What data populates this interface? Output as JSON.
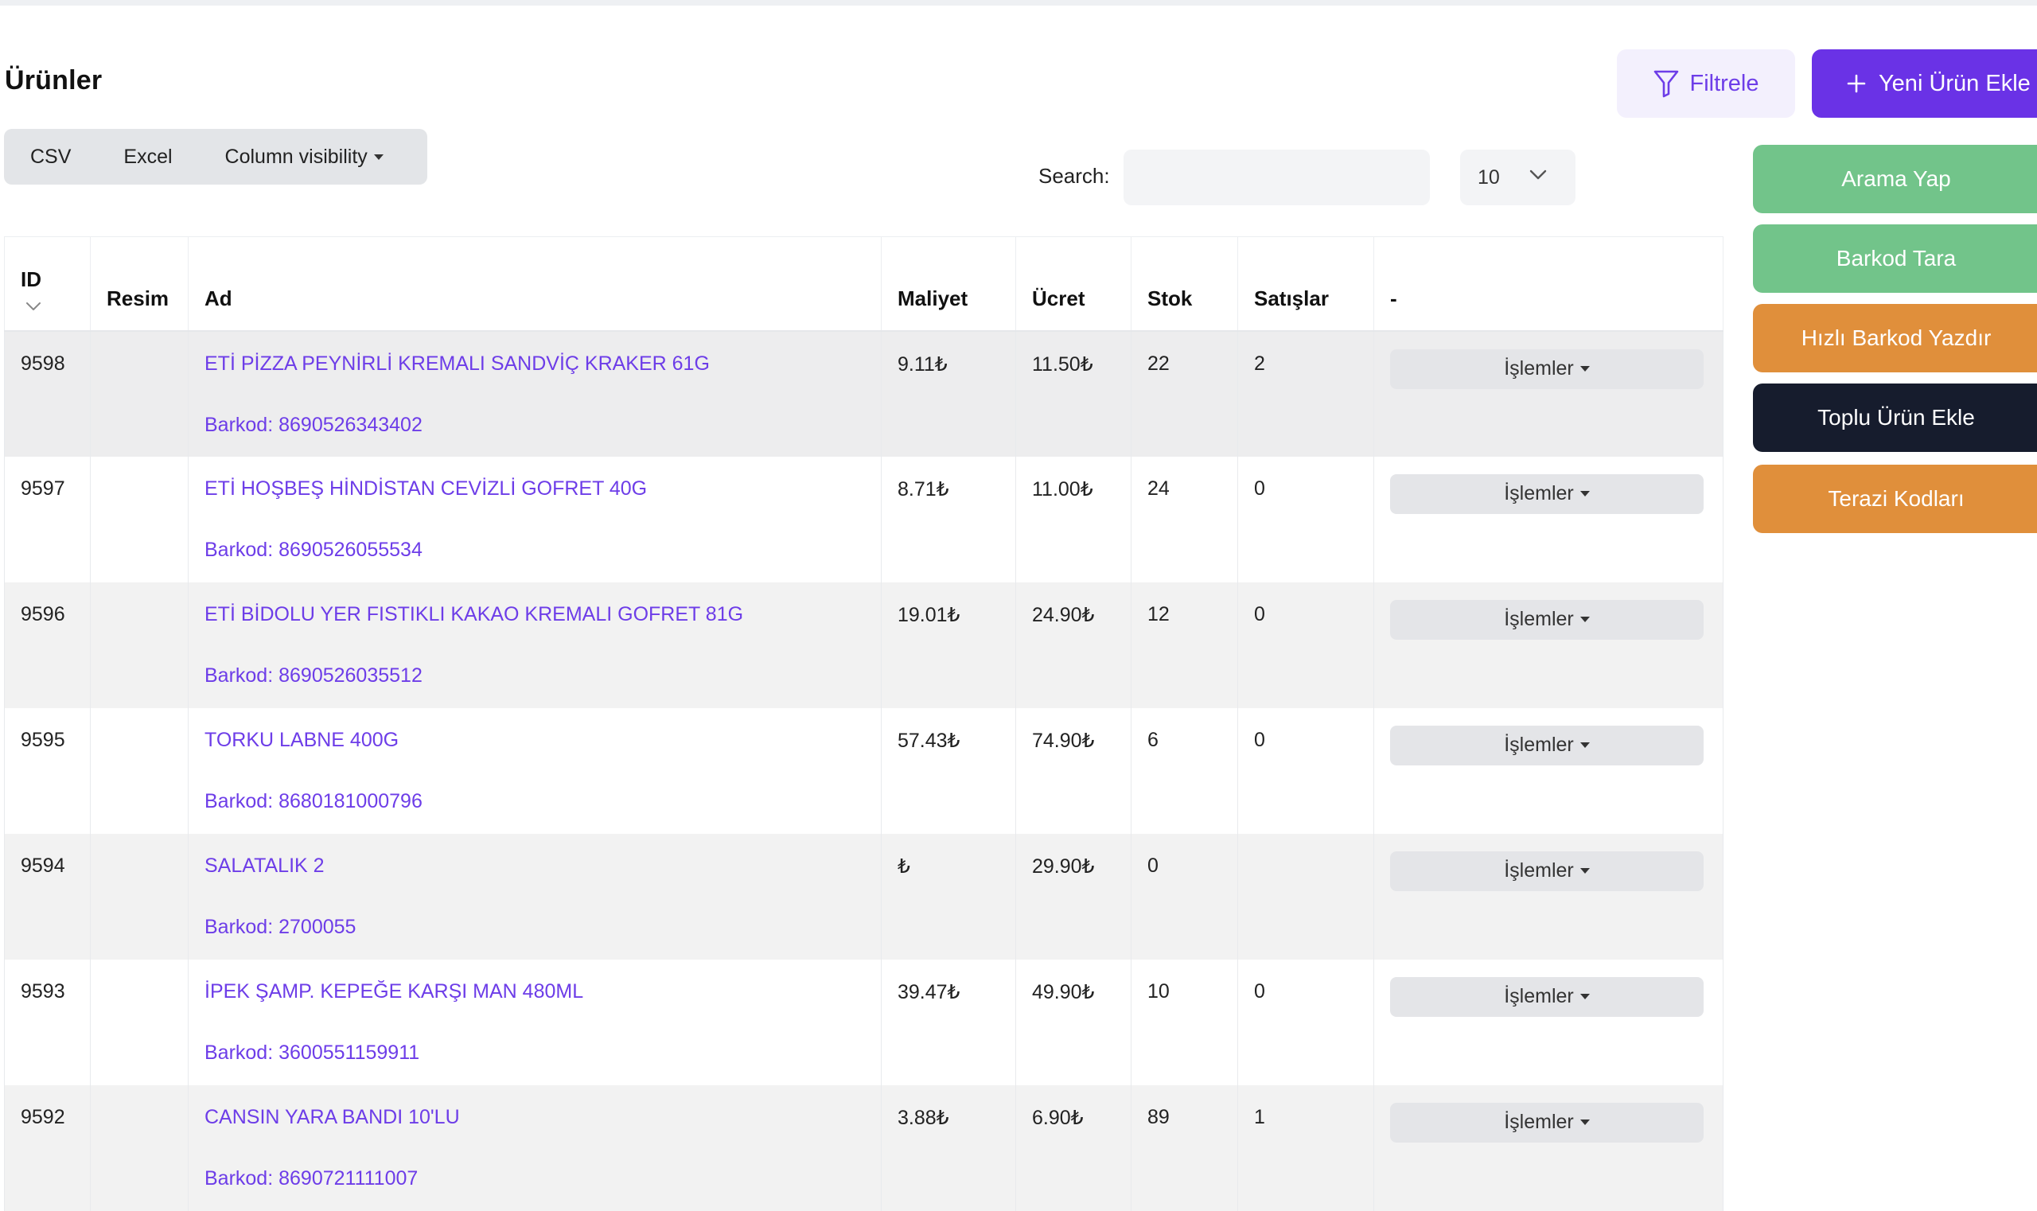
{
  "page": {
    "title": "Ürünler"
  },
  "header_actions": {
    "filter_label": "Filtrele",
    "new_product_label": "Yeni Ürün Ekle"
  },
  "export": {
    "csv": "CSV",
    "excel": "Excel",
    "column_visibility": "Column visibility"
  },
  "search": {
    "label": "Search:",
    "value": "",
    "placeholder": ""
  },
  "page_size": {
    "selected": "10"
  },
  "side_actions": {
    "search": "Arama Yap",
    "scan_barcode": "Barkod Tara",
    "quick_print": "Hızlı Barkod Yazdır",
    "bulk_add": "Toplu Ürün Ekle",
    "scale_codes": "Terazi Kodları"
  },
  "table": {
    "columns": {
      "id": "ID",
      "image": "Resim",
      "name": "Ad",
      "cost": "Maliyet",
      "price": "Ücret",
      "stock": "Stok",
      "sales": "Satışlar",
      "actions": "-"
    },
    "action_label": "İşlemler",
    "rows": [
      {
        "id": "9598",
        "name": "ETİ PİZZA PEYNİRLİ KREMALI SANDVİÇ KRAKER 61G",
        "barcode": "Barkod: 8690526343402",
        "cost": "9.11₺",
        "price": "11.50₺",
        "stock": "22",
        "sales": "2"
      },
      {
        "id": "9597",
        "name": "ETİ HOŞBEŞ HİNDİSTAN CEVİZLİ GOFRET 40G",
        "barcode": "Barkod: 8690526055534",
        "cost": "8.71₺",
        "price": "11.00₺",
        "stock": "24",
        "sales": "0"
      },
      {
        "id": "9596",
        "name": "ETİ BİDOLU YER FISTIKLI KAKAO KREMALI GOFRET 81G",
        "barcode": "Barkod: 8690526035512",
        "cost": "19.01₺",
        "price": "24.90₺",
        "stock": "12",
        "sales": "0"
      },
      {
        "id": "9595",
        "name": "TORKU LABNE 400G",
        "barcode": "Barkod: 8680181000796",
        "cost": "57.43₺",
        "price": "74.90₺",
        "stock": "6",
        "sales": "0"
      },
      {
        "id": "9594",
        "name": "SALATALIK 2",
        "barcode": "Barkod: 2700055",
        "cost": "₺",
        "price": "29.90₺",
        "stock": "0",
        "sales": ""
      },
      {
        "id": "9593",
        "name": "İPEK ŞAMP. KEPEĞE KARŞI MAN 480ML",
        "barcode": "Barkod: 3600551159911",
        "cost": "39.47₺",
        "price": "49.90₺",
        "stock": "10",
        "sales": "0"
      },
      {
        "id": "9592",
        "name": "CANSIN YARA BANDI 10'LU",
        "barcode": "Barkod: 8690721111007",
        "cost": "3.88₺",
        "price": "6.90₺",
        "stock": "89",
        "sales": "1"
      }
    ]
  },
  "icons": {
    "filter": "filter-icon",
    "plus": "plus-icon",
    "chevron": "chevron-down-icon"
  },
  "colors": {
    "accent": "#6a32e6",
    "link": "#6d3de8",
    "green": "#72c48a",
    "orange": "#e08f3b",
    "dark": "#161c2d"
  }
}
